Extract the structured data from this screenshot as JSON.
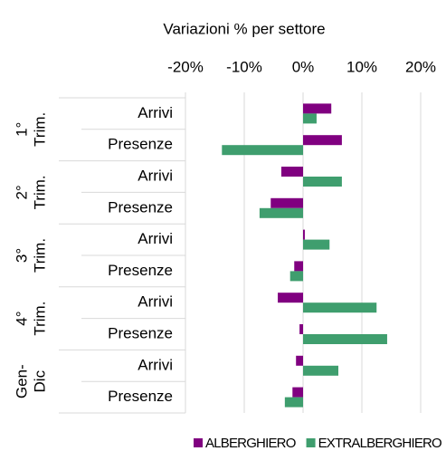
{
  "chart_data": {
    "type": "bar",
    "orientation": "horizontal",
    "title": "Variazioni % per settore",
    "groups": [
      {
        "label": [
          "1°",
          "Trim."
        ],
        "size": 2
      },
      {
        "label": [
          "2°",
          "Trim."
        ],
        "size": 2
      },
      {
        "label": [
          "3°",
          "Trim."
        ],
        "size": 2
      },
      {
        "label": [
          "4°",
          "Trim."
        ],
        "size": 2
      },
      {
        "label": [
          "Gen-",
          "Dic"
        ],
        "size": 2
      }
    ],
    "categories": [
      "Arrivi",
      "Presenze",
      "Arrivi",
      "Presenze",
      "Arrivi",
      "Presenze",
      "Arrivi",
      "Presenze",
      "Arrivi",
      "Presenze"
    ],
    "series": [
      {
        "name": "ALBERGHIERO",
        "color": "#800080",
        "values": [
          4.8,
          6.6,
          -3.7,
          -5.5,
          0.3,
          -1.5,
          -4.3,
          -0.6,
          -1.2,
          -1.8
        ]
      },
      {
        "name": "EXTRALBERGHIERO",
        "color": "#3f9e6e",
        "values": [
          2.3,
          -13.8,
          6.6,
          -7.4,
          4.5,
          -2.2,
          12.5,
          14.3,
          6.0,
          -3.1
        ]
      }
    ],
    "xlim": [
      -20,
      20
    ],
    "xticks": [
      {
        "value": -20,
        "label": "-20%"
      },
      {
        "value": -10,
        "label": "-10%"
      },
      {
        "value": 0,
        "label": "0%"
      },
      {
        "value": 10,
        "label": "10%"
      },
      {
        "value": 20,
        "label": "20%"
      }
    ],
    "grid": true,
    "legend": "bottom"
  }
}
